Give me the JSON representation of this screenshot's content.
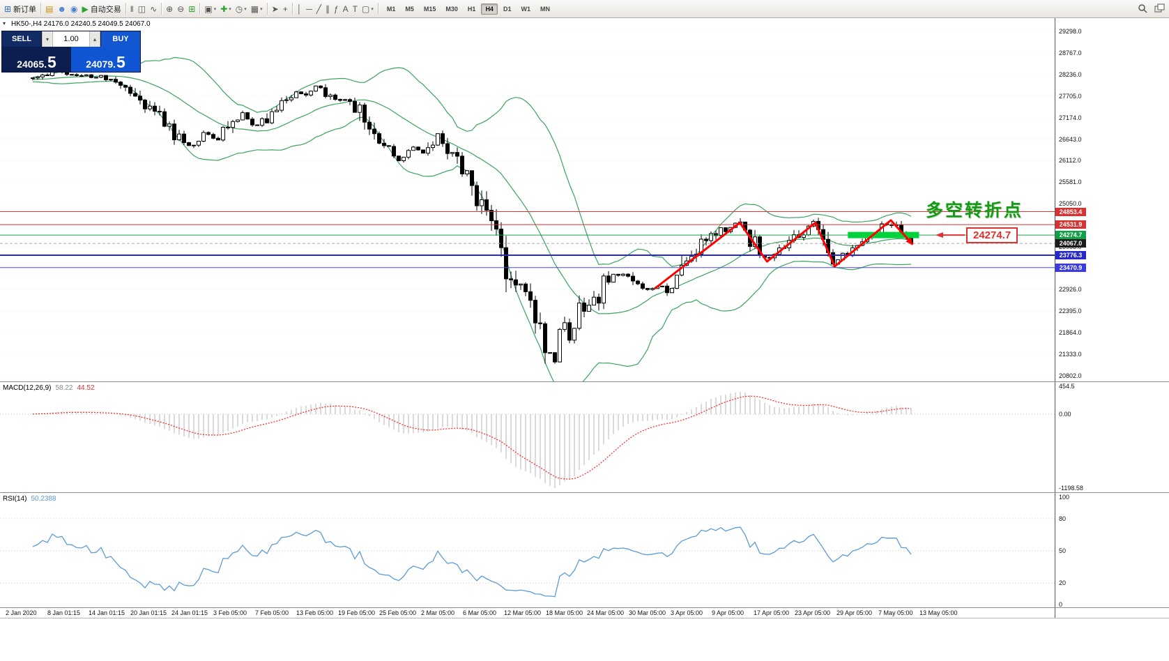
{
  "toolbar": {
    "items": [
      {
        "name": "new-order-button",
        "icon": "new-order-icon",
        "glyph": "⊞",
        "color": "#2e6fbe",
        "label": "新订单"
      },
      {
        "type": "sep"
      },
      {
        "name": "metaeditor-button",
        "icon": "metaeditor-icon",
        "glyph": "▤",
        "color": "#c8920a"
      },
      {
        "name": "profile-button",
        "icon": "profile-icon",
        "glyph": "☻",
        "color": "#4a7fd4"
      },
      {
        "name": "support-button",
        "icon": "support-icon",
        "glyph": "◉",
        "color": "#4a7fd4"
      },
      {
        "name": "autotrading-button",
        "icon": "autotrading-play-icon",
        "glyph": "▶",
        "color": "#2fa12f",
        "label": "自动交易"
      },
      {
        "type": "sep"
      },
      {
        "name": "bar-chart-button",
        "icon": "bar-chart-icon",
        "glyph": "‖"
      },
      {
        "name": "candlestick-chart-button",
        "icon": "candlestick-chart-icon",
        "glyph": "◫"
      },
      {
        "name": "line-chart-button",
        "icon": "line-chart-icon",
        "glyph": "∿"
      },
      {
        "type": "sep"
      },
      {
        "name": "zoom-in-button",
        "icon": "zoom-in-icon",
        "glyph": "⊕"
      },
      {
        "name": "zoom-out-button",
        "icon": "zoom-out-icon",
        "glyph": "⊖"
      },
      {
        "name": "grid-button",
        "icon": "grid-icon",
        "glyph": "⊞",
        "color": "#2fa12f"
      },
      {
        "type": "sep"
      },
      {
        "name": "tile-windows-button",
        "icon": "tile-windows-icon",
        "glyph": "▣",
        "dropdown": true
      },
      {
        "name": "indicators-button",
        "icon": "add-indicator-icon",
        "glyph": "✚",
        "color": "#2fa12f",
        "dropdown": true
      },
      {
        "name": "periods-button",
        "icon": "clock-icon",
        "glyph": "◷",
        "dropdown": true
      },
      {
        "name": "templates-button",
        "icon": "template-icon",
        "glyph": "▦",
        "dropdown": true
      },
      {
        "type": "sep"
      },
      {
        "name": "cursor-button",
        "icon": "cursor-icon",
        "glyph": "➤"
      },
      {
        "name": "crosshair-button",
        "icon": "crosshair-icon",
        "glyph": "+"
      },
      {
        "type": "sep"
      },
      {
        "name": "vertical-line-button",
        "icon": "vertical-line-icon",
        "glyph": "│"
      },
      {
        "name": "horizontal-line-button",
        "icon": "horizontal-line-icon",
        "glyph": "─"
      },
      {
        "name": "trendline-button",
        "icon": "trendline-icon",
        "glyph": "╱"
      },
      {
        "name": "channel-button",
        "icon": "channel-icon",
        "glyph": "∥"
      },
      {
        "name": "fibonacci-button",
        "icon": "fibonacci-icon",
        "glyph": "ƒ"
      },
      {
        "name": "text-button",
        "icon": "text-icon",
        "glyph": "A"
      },
      {
        "name": "label-button",
        "icon": "label-icon",
        "glyph": "T"
      },
      {
        "name": "shapes-button",
        "icon": "shapes-icon",
        "glyph": "▢",
        "dropdown": true
      },
      {
        "type": "sep"
      }
    ],
    "timeframes": [
      "M1",
      "M5",
      "M15",
      "M30",
      "H1",
      "H4",
      "D1",
      "W1",
      "MN"
    ],
    "active_timeframe": "H4"
  },
  "one_click": {
    "collapse_glyph": "▾",
    "sell_label": "SELL",
    "buy_label": "BUY",
    "volume": "1.00",
    "spin_down_glyph": "▾",
    "spin_up_glyph": "▴",
    "sell_price_small": "24065.",
    "sell_price_big": "5",
    "buy_price_small": "24079.",
    "buy_price_big": "5"
  },
  "chart": {
    "title_line": "HK50-,H4 24176.0 24240.5 24049.5 24067.0",
    "annotation_text": "多空转折点",
    "callout_price": "24274.7"
  },
  "macd_panel": {
    "name": "MACD(12,26,9)",
    "value_main": "58.22",
    "value_signal": "44.52",
    "axis_labels": [
      "454.5",
      "0.00",
      "-1198.58"
    ]
  },
  "rsi_panel": {
    "name": "RSI(14)",
    "value": "50.2388",
    "axis_labels": [
      "100",
      "80",
      "50",
      "20",
      "0"
    ]
  },
  "time_axis": {
    "labels": [
      "2 Jan 2020",
      "8 Jan 01:15",
      "14 Jan 01:15",
      "20 Jan 01:15",
      "24 Jan 01:15",
      "3 Feb 05:00",
      "7 Feb 05:00",
      "13 Feb 05:00",
      "19 Feb 05:00",
      "25 Feb 05:00",
      "2 Mar 05:00",
      "6 Mar 05:00",
      "12 Mar 05:00",
      "18 Mar 05:00",
      "24 Mar 05:00",
      "30 Mar 05:00",
      "3 Apr 05:00",
      "9 Apr 05:00",
      "17 Apr 05:00",
      "23 Apr 05:00",
      "29 Apr 05:00",
      "7 May 05:00",
      "13 May 05:00"
    ]
  },
  "chart_data": {
    "type": "candlestick",
    "symbol": "HK50-",
    "timeframe": "H4",
    "ohlc": {
      "open": 24176.0,
      "high": 24240.5,
      "low": 24049.5,
      "close": 24067.0
    },
    "bid": 24065.5,
    "ask": 24079.5,
    "price_axis_ticks": [
      29298.0,
      28767.0,
      28236.0,
      27705.0,
      27174.0,
      26643.0,
      26112.0,
      25581.0,
      25050.0,
      24519.0,
      23988.0,
      23457.0,
      22926.0,
      22395.0,
      21864.0,
      21333.0,
      20802.0
    ],
    "levels": [
      {
        "value": 24853.4,
        "color": "#e03434",
        "width": 1,
        "style": "solid",
        "badge_color": "#d43434"
      },
      {
        "value": 24531.9,
        "color": "#e03434",
        "width": 1,
        "style": "solid",
        "badge_color": "#d43434"
      },
      {
        "value": 24274.7,
        "color": "#17a34a",
        "width": 1,
        "style": "solid",
        "badge_color": "#12a047"
      },
      {
        "value": 24067.0,
        "color": "#a8a8a8",
        "width": 1,
        "style": "dashed",
        "badge_color": "#1b1b1b"
      },
      {
        "value": 23776.3,
        "color": "#2828c8",
        "width": 2,
        "style": "solid",
        "badge_color": "#2828c8"
      },
      {
        "value": 23470.9,
        "color": "#4848e8",
        "width": 1,
        "style": "solid",
        "badge_color": "#3c3cdc"
      }
    ],
    "candle_count": 181,
    "close_path_anchors": [
      [
        0.0,
        28120
      ],
      [
        0.02,
        28300
      ],
      [
        0.055,
        28230
      ],
      [
        0.085,
        28160
      ],
      [
        0.1,
        28050
      ],
      [
        0.115,
        27850
      ],
      [
        0.13,
        27500
      ],
      [
        0.15,
        27120
      ],
      [
        0.165,
        26650
      ],
      [
        0.18,
        26480
      ],
      [
        0.195,
        26780
      ],
      [
        0.21,
        26620
      ],
      [
        0.225,
        27060
      ],
      [
        0.24,
        27300
      ],
      [
        0.252,
        26950
      ],
      [
        0.268,
        27220
      ],
      [
        0.285,
        27600
      ],
      [
        0.3,
        27820
      ],
      [
        0.312,
        27700
      ],
      [
        0.322,
        27930
      ],
      [
        0.335,
        27780
      ],
      [
        0.348,
        27560
      ],
      [
        0.36,
        27700
      ],
      [
        0.375,
        27180
      ],
      [
        0.39,
        26720
      ],
      [
        0.405,
        26420
      ],
      [
        0.418,
        26120
      ],
      [
        0.432,
        26450
      ],
      [
        0.448,
        26230
      ],
      [
        0.462,
        26800
      ],
      [
        0.475,
        26280
      ],
      [
        0.49,
        25880
      ],
      [
        0.503,
        25300
      ],
      [
        0.515,
        24880
      ],
      [
        0.527,
        24420
      ],
      [
        0.538,
        23600
      ],
      [
        0.548,
        23150
      ],
      [
        0.558,
        22750
      ],
      [
        0.572,
        22320
      ],
      [
        0.583,
        21650
      ],
      [
        0.594,
        21120
      ],
      [
        0.602,
        22150
      ],
      [
        0.612,
        21500
      ],
      [
        0.622,
        22380
      ],
      [
        0.638,
        22480
      ],
      [
        0.652,
        23180
      ],
      [
        0.668,
        23320
      ],
      [
        0.682,
        23140
      ],
      [
        0.698,
        22930
      ],
      [
        0.708,
        22980
      ],
      [
        0.718,
        23040
      ],
      [
        0.726,
        22840
      ],
      [
        0.736,
        23420
      ],
      [
        0.75,
        23820
      ],
      [
        0.764,
        24120
      ],
      [
        0.78,
        24330
      ],
      [
        0.795,
        24500
      ],
      [
        0.805,
        24580
      ],
      [
        0.818,
        24150
      ],
      [
        0.836,
        23660
      ],
      [
        0.85,
        23900
      ],
      [
        0.865,
        24150
      ],
      [
        0.878,
        24400
      ],
      [
        0.891,
        24580
      ],
      [
        0.9,
        24150
      ],
      [
        0.913,
        23560
      ],
      [
        0.925,
        23850
      ],
      [
        0.938,
        24050
      ],
      [
        0.95,
        24250
      ],
      [
        0.963,
        24420
      ],
      [
        0.977,
        24600
      ],
      [
        0.988,
        24250
      ],
      [
        1.0,
        24067
      ]
    ],
    "bollinger": {
      "period": 20,
      "deviation": 2
    },
    "zigzag": {
      "color": "#ff0000",
      "points": [
        [
          0.708,
          22950
        ],
        [
          0.805,
          24580
        ],
        [
          0.836,
          23620
        ],
        [
          0.891,
          24580
        ],
        [
          0.913,
          23500
        ],
        [
          0.977,
          24640
        ],
        [
          1.002,
          24040
        ]
      ]
    },
    "support_zone": {
      "price": 24274.7,
      "x_start": 0.928,
      "x_end": 1.009,
      "color": "#00d23c"
    },
    "macd": {
      "fast": 12,
      "slow": 26,
      "signal": 9,
      "axis_max": 454.5,
      "axis_min": -1198.58
    },
    "rsi": {
      "period": 14,
      "levels": [
        80,
        50,
        20
      ]
    }
  }
}
